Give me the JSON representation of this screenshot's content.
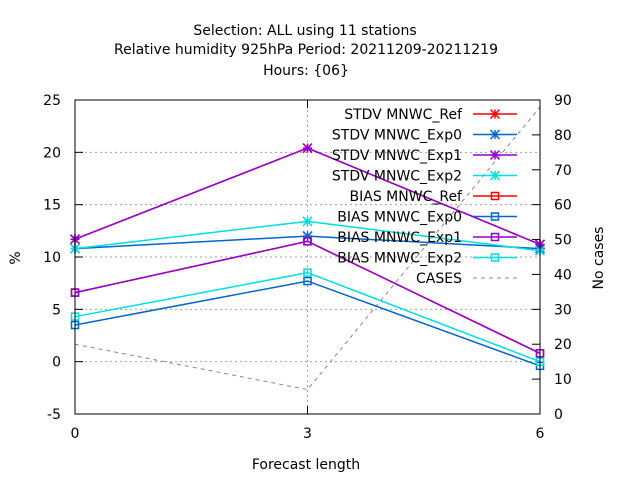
{
  "chart_data": {
    "type": "line",
    "title_lines": [
      "Selection: ALL using    11 stations",
      "Relative humidity 925hPa   Period: 20211209-20211219",
      "Hours: {06}"
    ],
    "xlabel": "Forecast length",
    "ylabel": "%",
    "y2label": "No cases",
    "x": [
      0,
      3,
      6
    ],
    "x_ticks": [
      "0",
      "3",
      "6"
    ],
    "xlim": [
      0,
      6
    ],
    "ylim": [
      -5,
      25
    ],
    "y_ticks": [
      "-5",
      "0",
      "5",
      "10",
      "15",
      "20",
      "25"
    ],
    "y2lim": [
      0,
      90
    ],
    "y2_ticks": [
      "0",
      "10",
      "20",
      "30",
      "40",
      "50",
      "60",
      "70",
      "80",
      "90"
    ],
    "grid": true,
    "legend_position": "top-right",
    "series": [
      {
        "name": "STDV MNWC_Ref",
        "color": "#ff0000",
        "marker": "star",
        "dash": "",
        "axis": "y",
        "values": [
          11.7,
          20.4,
          11.2
        ]
      },
      {
        "name": "STDV MNWC_Exp0",
        "color": "#0066cc",
        "marker": "star",
        "dash": "",
        "axis": "y",
        "values": [
          10.8,
          12.0,
          10.8
        ]
      },
      {
        "name": "STDV MNWC_Exp1",
        "color": "#9400d3",
        "marker": "star",
        "dash": "",
        "axis": "y",
        "values": [
          11.7,
          20.4,
          11.2
        ]
      },
      {
        "name": "STDV MNWC_Exp2",
        "color": "#00dddd",
        "marker": "star",
        "dash": "",
        "axis": "y",
        "values": [
          10.8,
          13.4,
          10.6
        ]
      },
      {
        "name": "BIAS MNWC_Ref",
        "color": "#ff0000",
        "marker": "square",
        "dash": "",
        "axis": "y",
        "values": [
          6.6,
          11.5,
          0.8
        ]
      },
      {
        "name": "BIAS MNWC_Exp0",
        "color": "#0066cc",
        "marker": "square",
        "dash": "",
        "axis": "y",
        "values": [
          3.5,
          7.7,
          -0.4
        ]
      },
      {
        "name": "BIAS MNWC_Exp1",
        "color": "#9400d3",
        "marker": "square",
        "dash": "",
        "axis": "y",
        "values": [
          6.6,
          11.5,
          0.8
        ]
      },
      {
        "name": "BIAS MNWC_Exp2",
        "color": "#00dddd",
        "marker": "square",
        "dash": "",
        "axis": "y",
        "values": [
          4.3,
          8.5,
          0.0
        ]
      },
      {
        "name": "CASES",
        "color": "#888888",
        "marker": "none",
        "dash": "4,4",
        "axis": "y2",
        "values": [
          20,
          7,
          88
        ]
      }
    ]
  }
}
